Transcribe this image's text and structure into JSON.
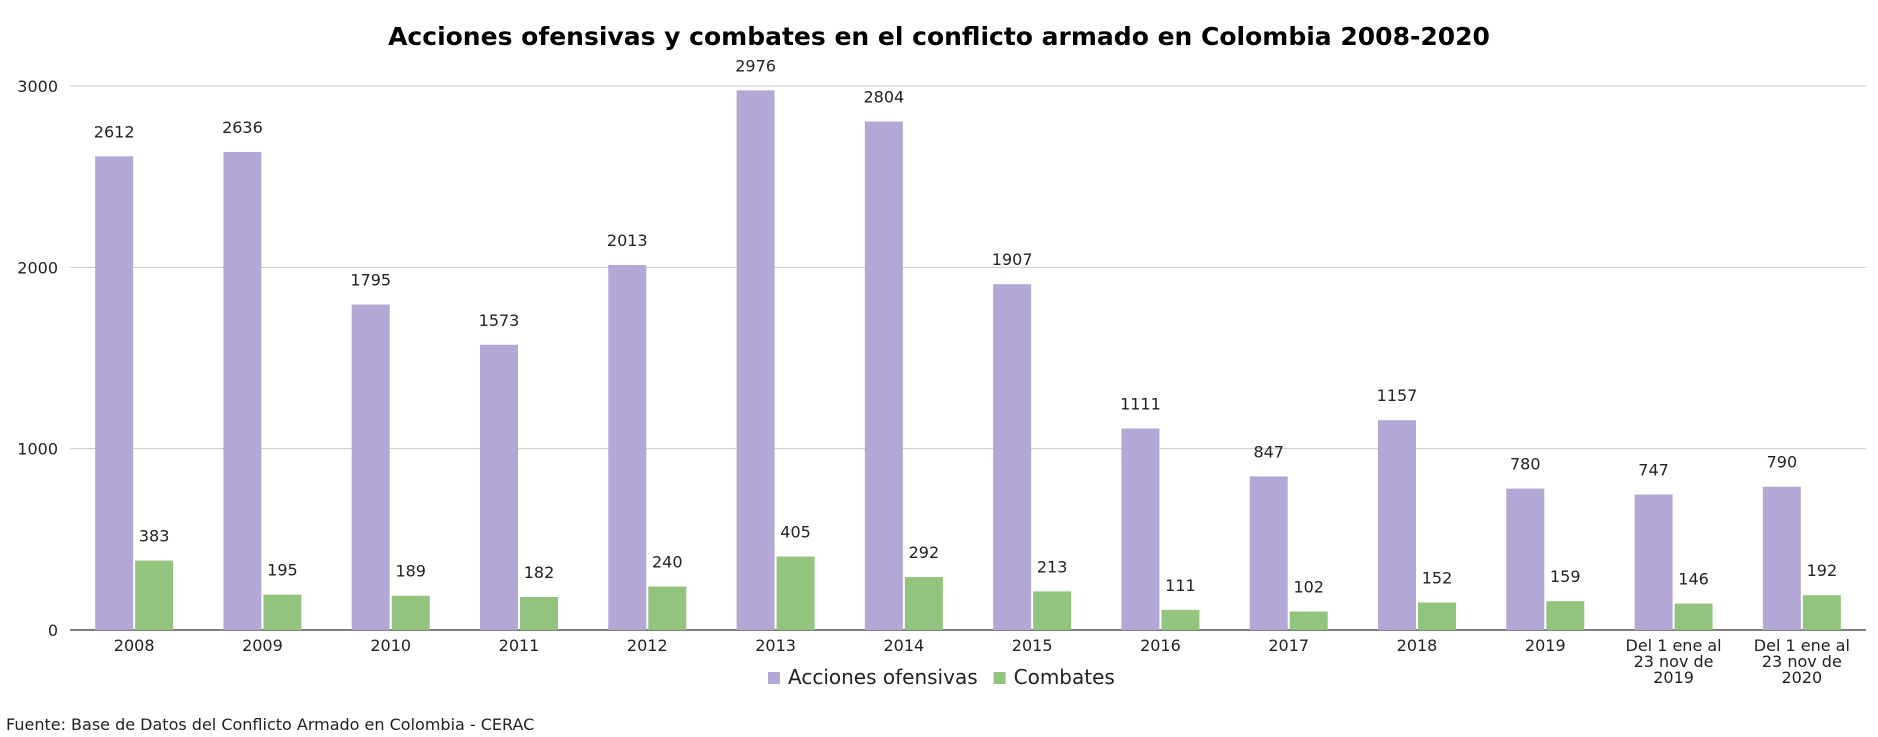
{
  "chart_data": {
    "type": "bar",
    "title": "Acciones ofensivas y combates en el conflicto armado en Colombia 2008-2020",
    "xlabel": "",
    "ylabel": "",
    "ylim": [
      0,
      3000
    ],
    "yticks": [
      "0",
      "1000",
      "2000",
      "3000"
    ],
    "grid": true,
    "legend_position": "bottom",
    "categories": [
      [
        "2008"
      ],
      [
        "2009"
      ],
      [
        "2010"
      ],
      [
        "2011"
      ],
      [
        "2012"
      ],
      [
        "2013"
      ],
      [
        "2014"
      ],
      [
        "2015"
      ],
      [
        "2016"
      ],
      [
        "2017"
      ],
      [
        "2018"
      ],
      [
        "2019"
      ],
      [
        "Del 1 ene al",
        "23 nov de",
        "2019"
      ],
      [
        "Del 1 ene al",
        "23 nov de",
        "2020"
      ]
    ],
    "series": [
      {
        "name": "Acciones ofensivas",
        "color": "#b3a7d6",
        "values": [
          2612,
          2636,
          1795,
          1573,
          2013,
          2976,
          2804,
          1907,
          1111,
          847,
          1157,
          780,
          747,
          790
        ]
      },
      {
        "name": "Combates",
        "color": "#93c47d",
        "values": [
          383,
          195,
          189,
          182,
          240,
          405,
          292,
          213,
          111,
          102,
          152,
          159,
          146,
          192
        ]
      }
    ]
  },
  "source": "Fuente: Base de Datos del Conflicto Armado en Colombia - CERAC"
}
